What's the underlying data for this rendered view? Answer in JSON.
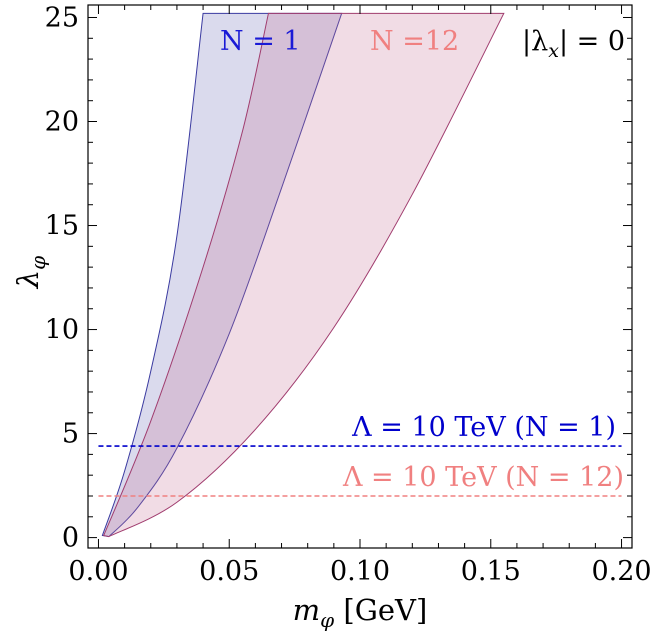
{
  "chart_data": {
    "type": "area",
    "xlabel": {
      "main": "m",
      "sub": "φ",
      "unit": " [GeV]"
    },
    "ylabel": {
      "main": "λ",
      "sub": "φ"
    },
    "xlim": [
      -0.004,
      0.204
    ],
    "ylim": [
      -0.5,
      25.6
    ],
    "x_ticks": [
      {
        "v": 0.0,
        "label": "0.00"
      },
      {
        "v": 0.05,
        "label": "0.05"
      },
      {
        "v": 0.1,
        "label": "0.10"
      },
      {
        "v": 0.15,
        "label": "0.15"
      },
      {
        "v": 0.2,
        "label": "0.20"
      }
    ],
    "y_ticks": [
      {
        "v": 0,
        "label": "0"
      },
      {
        "v": 5,
        "label": "5"
      },
      {
        "v": 10,
        "label": "10"
      },
      {
        "v": 15,
        "label": "15"
      },
      {
        "v": 20,
        "label": "20"
      },
      {
        "v": 25,
        "label": "25"
      }
    ],
    "grid": false,
    "series": [
      {
        "name": "N = 1",
        "fill": "#3a3a9e",
        "stroke": "#3a3aa0",
        "left_edge": [
          [
            0.0015,
            0.1
          ],
          [
            0.01,
            3.2
          ],
          [
            0.02,
            8.0
          ],
          [
            0.03,
            14.5
          ],
          [
            0.04,
            25.2
          ]
        ],
        "right_edge": [
          [
            0.004,
            0.05
          ],
          [
            0.015,
            1.45
          ],
          [
            0.03,
            4.3
          ],
          [
            0.05,
            9.8
          ],
          [
            0.07,
            16.8
          ],
          [
            0.093,
            25.2
          ]
        ]
      },
      {
        "name": "N =12",
        "fill": "#c8789c",
        "stroke": "#a03c6e",
        "left_edge": [
          [
            0.002,
            0.1
          ],
          [
            0.02,
            5.6
          ],
          [
            0.04,
            13.0
          ],
          [
            0.055,
            19.5
          ],
          [
            0.065,
            25.2
          ]
        ],
        "right_edge": [
          [
            0.004,
            0.05
          ],
          [
            0.03,
            1.7
          ],
          [
            0.06,
            5.2
          ],
          [
            0.09,
            10.1
          ],
          [
            0.12,
            16.5
          ],
          [
            0.155,
            25.2
          ]
        ]
      }
    ],
    "lines": [
      {
        "y": 4.4,
        "color": "#0000cc",
        "label": "Λ = 10 TeV (N = 1)"
      },
      {
        "y": 2.0,
        "color": "#f08080",
        "label": "Λ = 10 TeV (N = 12)"
      }
    ],
    "annotations": {
      "n1": {
        "text": "N = 1",
        "color": "#1a1ad6"
      },
      "n12": {
        "text": "N =12",
        "color": "#f08080"
      },
      "lambda_x": {
        "text": "|λ",
        "sub": "x",
        "rest": "| = 0",
        "color": "#000000"
      }
    }
  }
}
